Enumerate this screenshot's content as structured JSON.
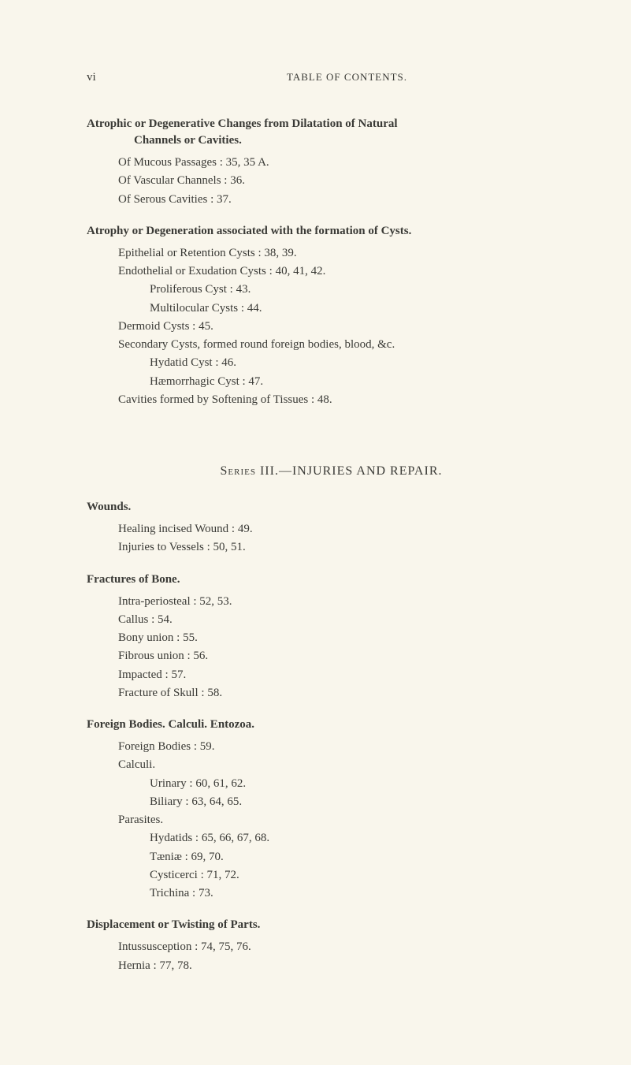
{
  "header": {
    "page_number": "vi",
    "running_head": "TABLE OF CONTENTS."
  },
  "block1": {
    "title_l1": "Atrophic or Degenerative Changes from Dilatation of Natural",
    "title_l2": "Channels or Cavities.",
    "l1": "Of Mucous Passages : 35, 35 A.",
    "l2": "Of Vascular Channels : 36.",
    "l3": "Of Serous Cavities : 37."
  },
  "block2": {
    "title": "Atrophy or Degeneration associated with the formation of Cysts.",
    "l1": "Epithelial or Retention Cysts : 38, 39.",
    "l2": "Endothelial or Exudation Cysts : 40, 41, 42.",
    "l3": "Proliferous Cyst : 43.",
    "l4": "Multilocular Cysts : 44.",
    "l5": "Dermoid Cysts : 45.",
    "l6": "Secondary Cysts, formed round foreign bodies, blood, &c.",
    "l7": "Hydatid Cyst : 46.",
    "l8": "Hæmorrhagic Cyst : 47.",
    "l9": "Cavities formed by Softening of Tissues : 48."
  },
  "series": {
    "head": "Series III.—INJURIES AND REPAIR."
  },
  "block3": {
    "title": "Wounds.",
    "l1": "Healing incised Wound : 49.",
    "l2": "Injuries to Vessels : 50, 51."
  },
  "block4": {
    "title": "Fractures of Bone.",
    "l1": "Intra-periosteal : 52, 53.",
    "l2": "Callus : 54.",
    "l3": "Bony union : 55.",
    "l4": "Fibrous union : 56.",
    "l5": "Impacted : 57.",
    "l6": "Fracture of Skull : 58."
  },
  "block5": {
    "title": "Foreign Bodies.  Calculi.  Entozoa.",
    "l1": "Foreign Bodies : 59.",
    "l2": "Calculi.",
    "l3": "Urinary : 60, 61, 62.",
    "l4": "Biliary : 63, 64, 65.",
    "l5": "Parasites.",
    "l6": "Hydatids : 65, 66, 67, 68.",
    "l7": "Tæniæ : 69, 70.",
    "l8": "Cysticerci : 71, 72.",
    "l9": "Trichina : 73."
  },
  "block6": {
    "title": "Displacement or Twisting of Parts.",
    "l1": "Intussusception : 74, 75, 76.",
    "l2": "Hernia : 77, 78."
  }
}
